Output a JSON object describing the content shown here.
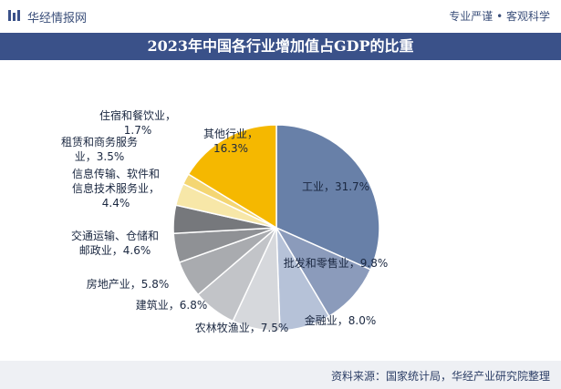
{
  "header": {
    "brand": "华经情报网",
    "tagline": "专业严谨 • 客观科学",
    "logo_icon": "chart-bars-icon"
  },
  "chart_data": {
    "type": "pie",
    "title": "2023年中国各行业增加值占GDP的比重",
    "unit": "%",
    "slices": [
      {
        "name": "工业",
        "value": 31.7,
        "label": "工业，31.7%",
        "color": "#6880a8"
      },
      {
        "name": "批发和零售业",
        "value": 9.8,
        "label": "批发和零售业，9.8%",
        "color": "#8b9bbb"
      },
      {
        "name": "金融业",
        "value": 8.0,
        "label": "金融业，8.0%",
        "color": "#b6c2d8"
      },
      {
        "name": "农林牧渔业",
        "value": 7.5,
        "label": "农林牧渔业，7.5%",
        "color": "#d6d8dc"
      },
      {
        "name": "建筑业",
        "value": 6.8,
        "label": "建筑业，6.8%",
        "color": "#c2c4c8"
      },
      {
        "name": "房地产业",
        "value": 5.8,
        "label": "房地产业，5.8%",
        "color": "#a9abaf"
      },
      {
        "name": "交通运输、仓储和邮政业",
        "value": 4.6,
        "label_lines": [
          "交通运输、仓储和",
          "邮政业，4.6%"
        ],
        "color": "#8f9195"
      },
      {
        "name": "信息传输、软件和信息技术服务业",
        "value": 4.4,
        "label_lines": [
          "信息传输、软件和",
          "信息技术服务业，",
          "4.4%"
        ],
        "color": "#76787c"
      },
      {
        "name": "租赁和商务服务业",
        "value": 3.5,
        "label_lines": [
          "租赁和商务服务",
          "业，3.5%"
        ],
        "color": "#f7e7a8"
      },
      {
        "name": "住宿和餐饮业",
        "value": 1.7,
        "label_lines": [
          "住宿和餐饮业，",
          "1.7%"
        ],
        "color": "#f4d673"
      },
      {
        "name": "其他行业",
        "value": 16.3,
        "label_lines": [
          "其他行业，",
          "16.3%"
        ],
        "color": "#f5b800"
      }
    ]
  },
  "footer": {
    "source": "资料来源：国家统计局，华经产业研究院整理"
  }
}
